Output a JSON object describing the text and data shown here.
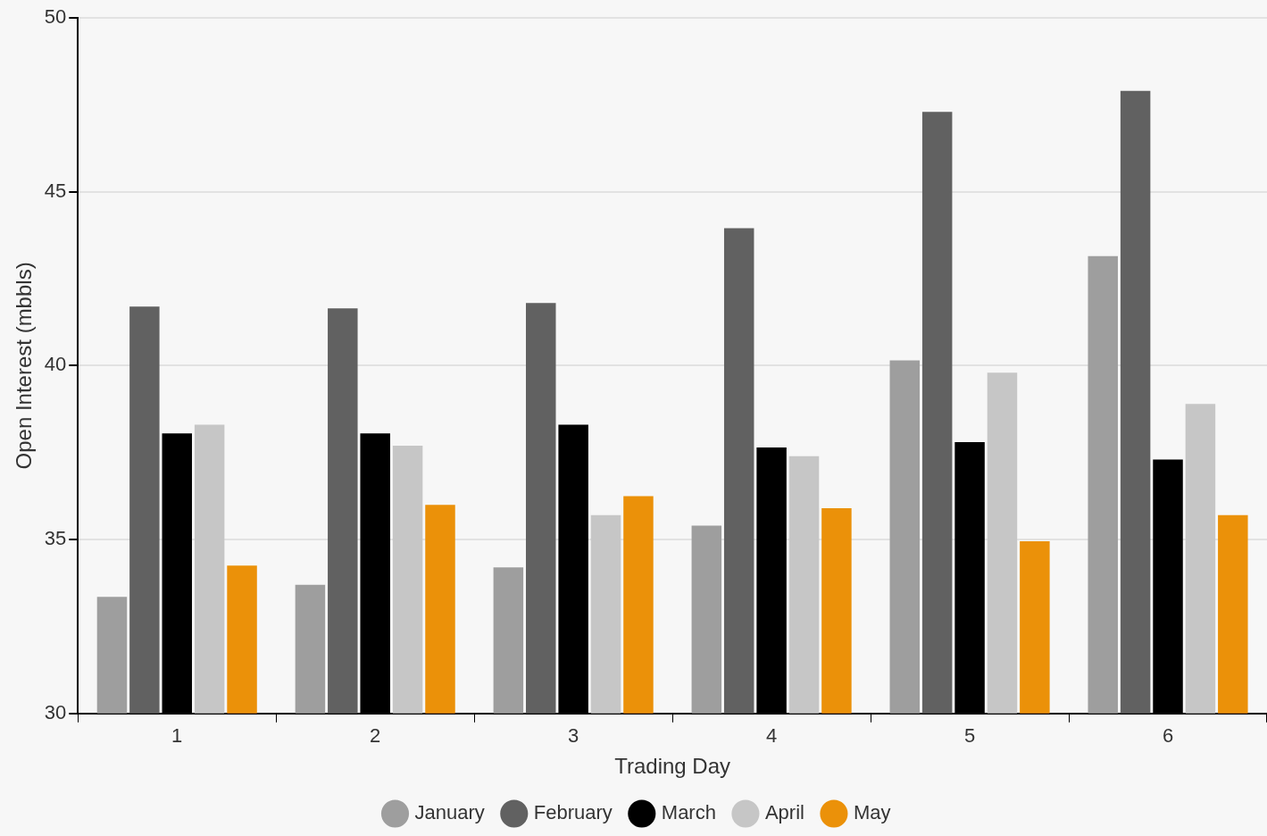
{
  "chart_data": {
    "type": "bar",
    "xlabel": "Trading Day",
    "ylabel": "Open Interest (mbbls)",
    "categories": [
      "1",
      "2",
      "3",
      "4",
      "5",
      "6"
    ],
    "series": [
      {
        "name": "January",
        "color": "#9e9e9e",
        "values": [
          33.35,
          33.7,
          34.2,
          35.4,
          40.15,
          43.15
        ]
      },
      {
        "name": "February",
        "color": "#616161",
        "values": [
          41.7,
          41.65,
          41.8,
          43.95,
          47.3,
          47.9
        ]
      },
      {
        "name": "March",
        "color": "#000000",
        "values": [
          38.05,
          38.05,
          38.3,
          37.65,
          37.8,
          37.3
        ]
      },
      {
        "name": "April",
        "color": "#c6c6c6",
        "values": [
          38.3,
          37.7,
          35.7,
          37.4,
          39.8,
          38.9
        ]
      },
      {
        "name": "May",
        "color": "#eb9109",
        "values": [
          34.25,
          36.0,
          36.25,
          35.9,
          34.95,
          35.7
        ]
      }
    ],
    "ylim": [
      30,
      50
    ],
    "yticks": [
      30,
      35,
      40,
      45,
      50
    ],
    "grid": "y",
    "legend": "bottom"
  }
}
